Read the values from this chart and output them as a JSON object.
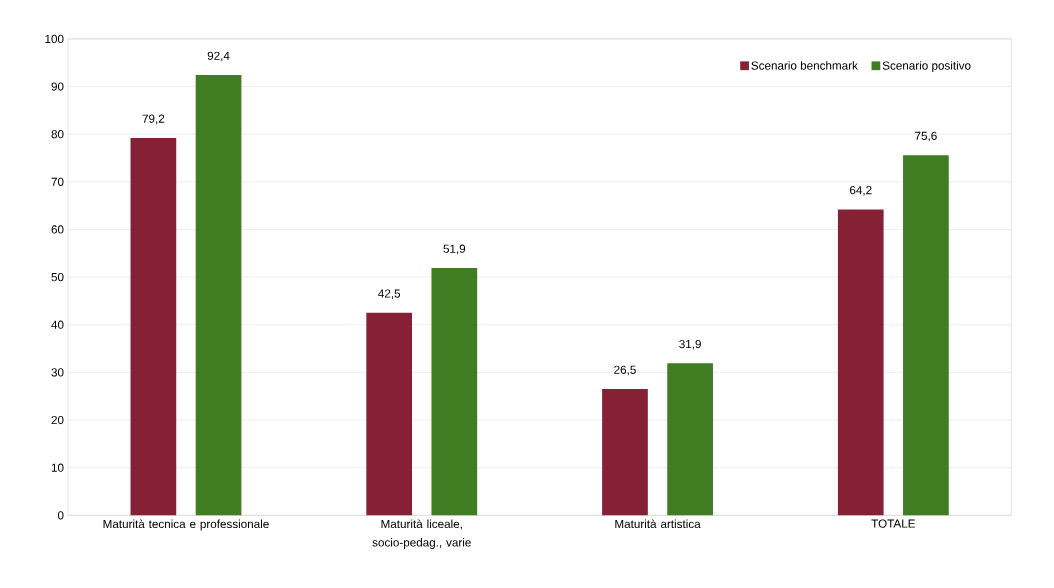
{
  "chart_data": {
    "type": "bar",
    "categories": [
      "Maturità tecnica e professionale",
      "Maturità liceale, socio-pedag., varie",
      "Maturità artistica",
      "TOTALE"
    ],
    "series": [
      {
        "name": "Scenario benchmark",
        "color": "#862035",
        "values": [
          79.2,
          42.5,
          26.5,
          64.2
        ],
        "value_labels": [
          "79,2",
          "42,5",
          "26,5",
          "64,2"
        ]
      },
      {
        "name": "Scenario positivo",
        "color": "#407d22",
        "values": [
          92.4,
          51.9,
          31.9,
          75.6
        ],
        "value_labels": [
          "92,4",
          "51,9",
          "31,9",
          "75,6"
        ]
      }
    ],
    "ylim": [
      0,
      100
    ],
    "yticks": [
      0,
      10,
      20,
      30,
      40,
      50,
      60,
      70,
      80,
      90,
      100
    ],
    "grid": "y",
    "legend": "top right"
  }
}
